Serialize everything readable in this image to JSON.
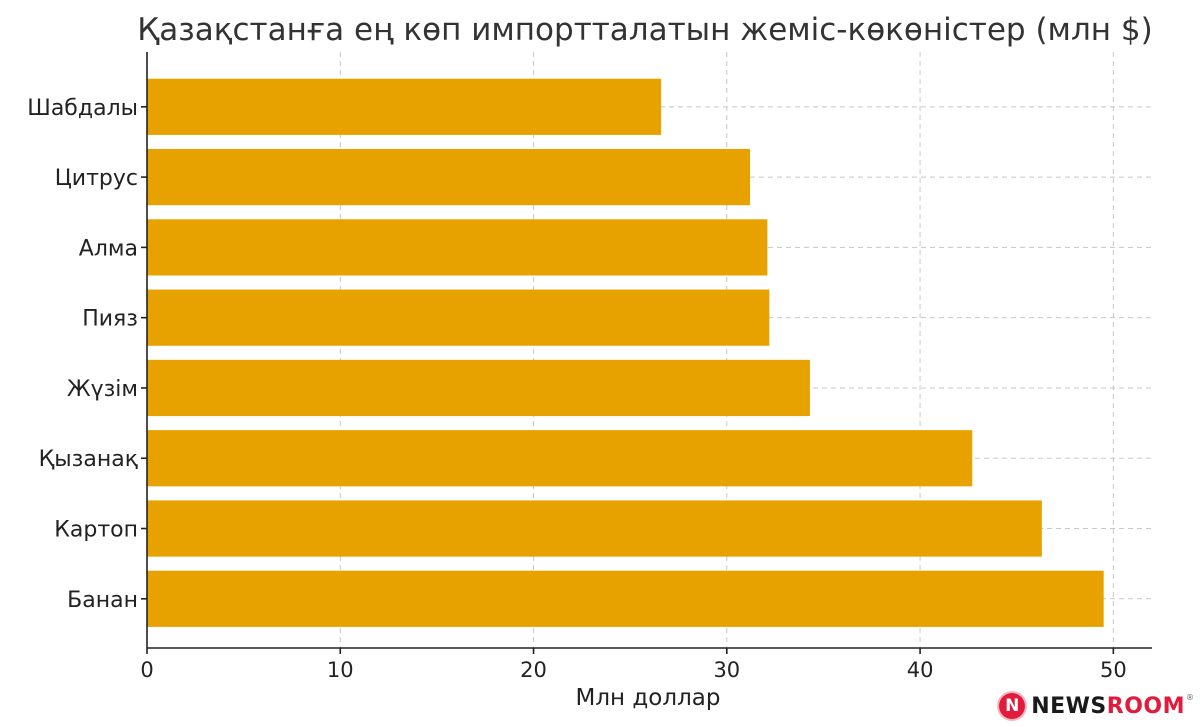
{
  "chart_data": {
    "type": "bar",
    "orientation": "horizontal",
    "title": "Қазақстанға ең көп импортталатын жеміс-көкөністер (млн $)",
    "xlabel": "Млн доллар",
    "ylabel": "",
    "categories": [
      "Шабдалы",
      "Цитрус",
      "Алма",
      "Пияз",
      "Жүзім",
      "Қызанақ",
      "Картоп",
      "Банан"
    ],
    "values": [
      26.6,
      31.2,
      32.1,
      32.2,
      34.3,
      42.7,
      46.3,
      49.5
    ],
    "xlim": [
      0,
      52
    ],
    "xticks": [
      0,
      10,
      20,
      30,
      40,
      50
    ],
    "xtick_labels": [
      "0",
      "10",
      "20",
      "30",
      "40",
      "50"
    ],
    "grid": true,
    "bar_color": "#E8A200"
  },
  "logo": {
    "mark": "N",
    "word_part1": "NEWS",
    "word_part2": "ROOM",
    "registered": "®",
    "brand_color": "#E21B3C"
  }
}
